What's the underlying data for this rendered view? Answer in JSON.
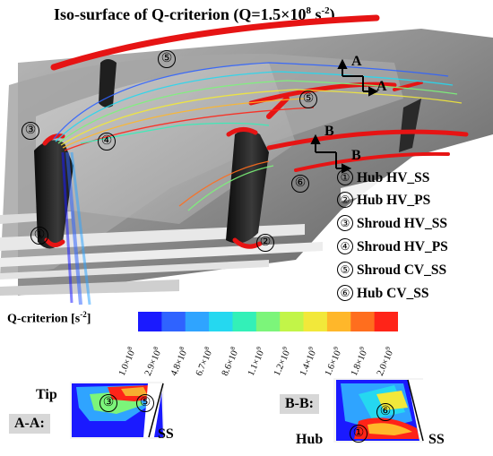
{
  "title": {
    "main": "Iso-surface of Q-criterion (Q=1.5×10",
    "exp": "8",
    "unit": " s",
    "unit_exp": "-2",
    "close": ")"
  },
  "callouts_3d": [
    {
      "num": "①"
    },
    {
      "num": "②"
    },
    {
      "num": "③"
    },
    {
      "num": "④"
    },
    {
      "num": "⑤"
    },
    {
      "num": "⑤"
    },
    {
      "num": "⑥"
    }
  ],
  "section_markers": {
    "a1": "A",
    "a2": "A",
    "b1": "B",
    "b2": "B"
  },
  "legend": [
    {
      "num": "①",
      "label": "Hub HV_SS"
    },
    {
      "num": "②",
      "label": "Hub HV_PS"
    },
    {
      "num": "③",
      "label": "Shroud HV_SS"
    },
    {
      "num": "④",
      "label": "Shroud HV_PS"
    },
    {
      "num": "⑤",
      "label": "Shroud CV_SS"
    },
    {
      "num": "⑥",
      "label": "Hub CV_SS"
    }
  ],
  "colorbar": {
    "label": "Q-criterion [s",
    "label_exp": "-2",
    "label_close": "]",
    "ticks": [
      {
        "m": "1.0×10",
        "e": "8"
      },
      {
        "m": "2.9×10",
        "e": "8"
      },
      {
        "m": "4.8×10",
        "e": "8"
      },
      {
        "m": "6.7×10",
        "e": "8"
      },
      {
        "m": "8.6×10",
        "e": "8"
      },
      {
        "m": "1.1×10",
        "e": "9"
      },
      {
        "m": "1.2×10",
        "e": "9"
      },
      {
        "m": "1.4×10",
        "e": "9"
      },
      {
        "m": "1.6×10",
        "e": "9"
      },
      {
        "m": "1.8×10",
        "e": "9"
      },
      {
        "m": "2.0×10",
        "e": "9"
      }
    ],
    "colors": [
      "#1a1aff",
      "#2f63ff",
      "#2fa4ff",
      "#25d8f0",
      "#33f0b8",
      "#7cf57a",
      "#c2f548",
      "#f2e83a",
      "#ffb72a",
      "#ff6e1e",
      "#ff2418"
    ]
  },
  "section_aa": {
    "tag": "A-A:",
    "tip": "Tip",
    "ss": "SS",
    "c3": "③",
    "c5": "⑤"
  },
  "section_bb": {
    "tag": "B-B:",
    "hub": "Hub",
    "ss": "SS",
    "c1": "①",
    "c6": "⑥"
  }
}
